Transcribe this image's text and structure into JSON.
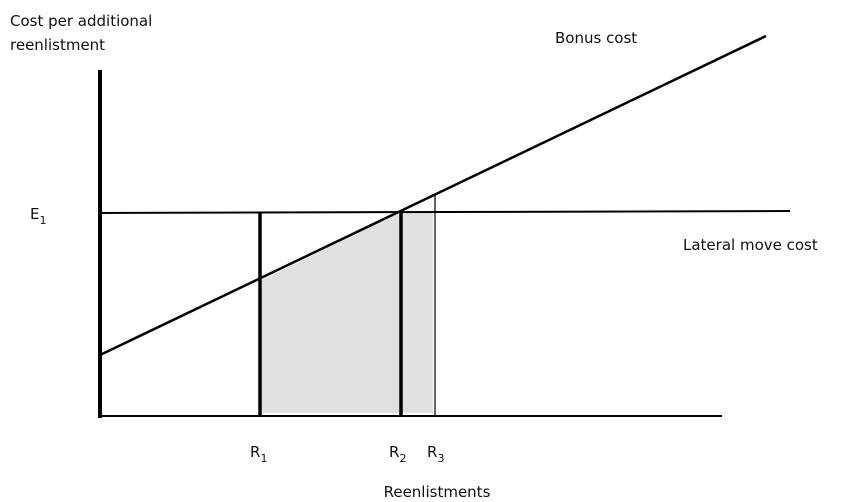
{
  "y_axis_label": [
    "Cost per additional",
    "reenlistment"
  ],
  "x_axis_label": "Reenlistments",
  "bonus_label": "Bonus cost",
  "lateral_label": "Lateral move cost",
  "e_label": {
    "main": "E",
    "sub": "1"
  },
  "r_labels": [
    {
      "main": "R",
      "sub": "1"
    },
    {
      "main": "R",
      "sub": "2"
    },
    {
      "main": "R",
      "sub": "3"
    }
  ]
}
